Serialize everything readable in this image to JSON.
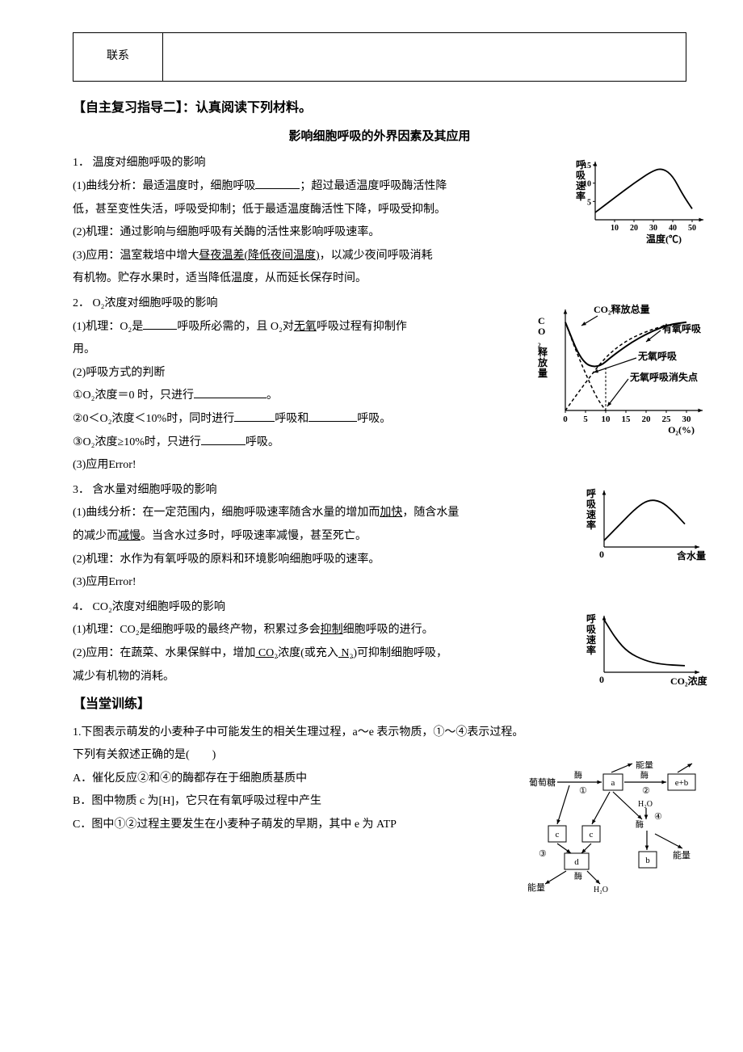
{
  "table": {
    "cell_label": "联系"
  },
  "sec2_title": "【自主复习指导二】：认真阅读下列材料。",
  "subtitle": "影响细胞呼吸的外界因素及其应用",
  "s1": {
    "head": "1．  温度对细胞呼吸的影响",
    "p1a": "(1)曲线分析：最适温度时，细胞呼吸",
    "p1b": "；超过最适温度呼吸酶活性降",
    "p1c": "低，甚至变性失活，呼吸受抑制；低于最适温度酶活性下降，呼吸受抑制。",
    "p2": "(2)机理：通过影响与细胞呼吸有关酶的活性来影响呼吸速率。",
    "p3a": "(3)应用：温室栽培中增大",
    "p3u": "昼夜温差(降低夜间温度)",
    "p3b": "，以减少夜间呼吸消耗",
    "p3c": "有机物。贮存水果时，适当降低温度，从而延长保存时间。"
  },
  "chart1": {
    "y_label": "呼吸速率",
    "y_ticks": [
      "5",
      "10",
      "15"
    ],
    "x_ticks": [
      "10",
      "20",
      "30",
      "40",
      "50"
    ],
    "x_label": "温度(℃)",
    "curve_color": "#000",
    "axis_color": "#000",
    "y_max": 15,
    "x_max": 50,
    "points": [
      [
        0,
        2
      ],
      [
        10,
        6
      ],
      [
        20,
        10
      ],
      [
        30,
        13.5
      ],
      [
        35,
        14
      ],
      [
        40,
        12
      ],
      [
        45,
        7
      ],
      [
        50,
        3
      ]
    ]
  },
  "s2": {
    "head": "2．  O₂浓度对细胞呼吸的影响",
    "p1a": "(1)机理：O₂是",
    "p1b": "呼吸所必需的，且 O₂对",
    "p1u": "无氧",
    "p1c": "呼吸过程有抑制作",
    "p1d": "用。",
    "p2": "(2)呼吸方式的判断",
    "p2a_a": "①O₂浓度＝0 时，只进行",
    "p2a_b": "。",
    "p2b_a": "②0＜O₂浓度＜10%时，同时进行",
    "p2b_b": "呼吸和",
    "p2b_c": "呼吸。",
    "p2c_a": "③O₂浓度≥10%时，只进行",
    "p2c_b": "呼吸。",
    "p3": "(3)应用Error!"
  },
  "chart2": {
    "y_label": "CO₂释放量",
    "x_ticks": [
      "0",
      "5",
      "10",
      "15",
      "20",
      "25",
      "30"
    ],
    "x_label": "O₂(%)",
    "labels": {
      "total": "CO₂释放总量",
      "aerobic": "有氧呼吸",
      "anaerobic": "无氧呼吸",
      "vanish": "无氧呼吸消失点"
    },
    "axis_color": "#000",
    "total_curve": [
      [
        0,
        95
      ],
      [
        4,
        52
      ],
      [
        8,
        45
      ],
      [
        12,
        60
      ],
      [
        18,
        78
      ],
      [
        25,
        92
      ],
      [
        30,
        95
      ]
    ],
    "aerobic_curve": [
      [
        0,
        0
      ],
      [
        5,
        30
      ],
      [
        10,
        58
      ],
      [
        15,
        75
      ],
      [
        20,
        85
      ],
      [
        25,
        92
      ],
      [
        30,
        95
      ]
    ],
    "anaerobic_curve": [
      [
        0,
        95
      ],
      [
        3,
        60
      ],
      [
        6,
        30
      ],
      [
        8,
        12
      ],
      [
        10,
        0
      ]
    ],
    "vanish_x": 10
  },
  "s3": {
    "head": "3．  含水量对细胞呼吸的影响",
    "p1a": "(1)曲线分析：在一定范围内，细胞呼吸速率随含水量的增加而",
    "p1u1": "加快",
    "p1b": "，随含水量",
    "p1c": "的减少而",
    "p1u2": "减慢",
    "p1d": "。当含水过多时，呼吸速率减慢，甚至死亡。",
    "p2": "(2)机理：水作为有氧呼吸的原料和环境影响细胞呼吸的速率。",
    "p3": "(3)应用Error!"
  },
  "chart3": {
    "y_label": "呼吸速率",
    "x_label": "含水量",
    "axis_color": "#000",
    "points": [
      [
        0,
        10
      ],
      [
        20,
        35
      ],
      [
        40,
        60
      ],
      [
        55,
        72
      ],
      [
        70,
        70
      ],
      [
        85,
        55
      ],
      [
        100,
        35
      ]
    ]
  },
  "s4": {
    "head": "4．  CO₂浓度对细胞呼吸的影响",
    "p1a": "(1)机理：CO₂是细胞呼吸的最终产物，积累过多会",
    "p1u": "抑制",
    "p1b": "细胞呼吸的进行。",
    "p2a": "(2)应用：在蔬菜、水果保鲜中，增加",
    "p2u1": " CO₂",
    "p2b": "浓度(或充入",
    "p2u2": " N₂",
    "p2c": ")可抑制细胞呼吸，",
    "p2d": "减少有机物的消耗。"
  },
  "chart4": {
    "y_label": "呼吸速率",
    "x_label": "CO₂浓度",
    "axis_color": "#000",
    "points": [
      [
        0,
        80
      ],
      [
        15,
        50
      ],
      [
        30,
        30
      ],
      [
        50,
        18
      ],
      [
        70,
        12
      ],
      [
        100,
        10
      ]
    ]
  },
  "train_head": "【当堂训练】",
  "q1": {
    "stem1": "1.下图表示萌发的小麦种子中可能发生的相关生理过程，a～e 表示物质，①～④表示过程。",
    "stem2": "下列有关叙述正确的是(　　)",
    "A": "A．催化反应②和④的酶都存在于细胞质基质中",
    "B": "B．图中物质 c 为[H]，它只在有氧呼吸过程中产生",
    "C": "C．图中①②过程主要发生在小麦种子萌发的早期，其中 e 为 ATP"
  },
  "diagram": {
    "glucose": "葡萄糖",
    "enzyme": "酶",
    "energy": "能量",
    "a": "a",
    "b": "b",
    "c": "c",
    "d": "d",
    "eb": "e+b",
    "h2o": "H₂O",
    "n1": "①",
    "n2": "②",
    "n3": "③",
    "n4": "④"
  }
}
